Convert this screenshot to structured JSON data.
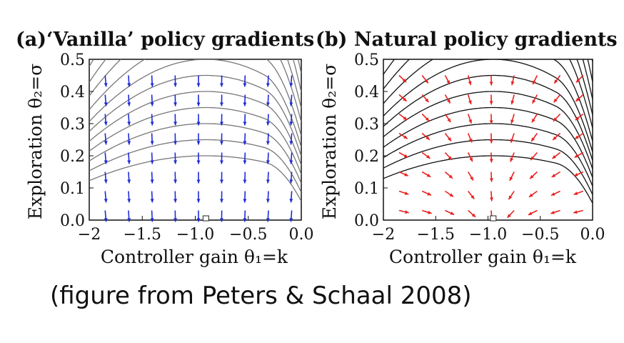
{
  "chart_data": [
    {
      "type": "quiver-contour",
      "title": "(a)‘Vanilla’ policy gradients",
      "xlabel": "Controller gain θ₁=k",
      "ylabel": "Exploration θ₂=σ",
      "xlim": [
        -2,
        0
      ],
      "ylim": [
        0,
        0.5
      ],
      "x_ticks": [
        -2,
        -1.5,
        -1,
        -0.5,
        0
      ],
      "x_tick_labels": [
        "−2",
        "−1.5",
        "−1.0",
        "−0.5",
        "0.0"
      ],
      "y_ticks": [
        0,
        0.1,
        0.2,
        0.3,
        0.4,
        0.5
      ],
      "y_tick_labels": [
        "0.0",
        "0.1",
        "0.2",
        "0.3",
        "0.4",
        "0.5"
      ],
      "arrow_color": "#1f2bd6",
      "contour_color": "#777777",
      "optimum": {
        "k": -0.9,
        "sigma": 0.0
      },
      "contour_levels": [
        0.2,
        0.25,
        0.3,
        0.35,
        0.4,
        0.45,
        0.5,
        0.56,
        0.63,
        0.7,
        0.78,
        0.87,
        0.97
      ],
      "arrow_columns_k": [
        -1.85,
        -1.63,
        -1.41,
        -1.19,
        -0.97,
        -0.75,
        -0.53,
        -0.31,
        -0.09
      ],
      "arrow_rows_sigma": [
        0.03,
        0.09,
        0.15,
        0.21,
        0.27,
        0.33,
        0.39,
        0.45
      ]
    },
    {
      "type": "quiver-contour",
      "title": "(b) Natural policy gradients",
      "xlabel": "Controller gain θ₁=k",
      "ylabel": "Exploration θ₂=σ",
      "xlim": [
        -2,
        0
      ],
      "ylim": [
        0,
        0.5
      ],
      "x_ticks": [
        -2,
        -1.5,
        -1,
        -0.5,
        0
      ],
      "x_tick_labels": [
        "−2",
        "−1.5",
        "−1.0",
        "−0.5",
        "0.0"
      ],
      "y_ticks": [
        0,
        0.1,
        0.2,
        0.3,
        0.4,
        0.5
      ],
      "y_tick_labels": [
        "0.0",
        "0.1",
        "0.2",
        "0.3",
        "0.4",
        "0.5"
      ],
      "arrow_color": "#e8201f",
      "contour_color": "#111111",
      "optimum": {
        "k": -0.95,
        "sigma": 0.0
      },
      "contour_levels": [
        0.2,
        0.25,
        0.3,
        0.35,
        0.4,
        0.45,
        0.5,
        0.56,
        0.63,
        0.7,
        0.78,
        0.87,
        0.97
      ],
      "arrow_columns_k": [
        -1.85,
        -1.63,
        -1.41,
        -1.19,
        -0.97,
        -0.75,
        -0.53,
        -0.31,
        -0.09
      ],
      "arrow_rows_sigma": [
        0.03,
        0.09,
        0.15,
        0.21,
        0.27,
        0.33,
        0.39,
        0.45
      ]
    }
  ],
  "caption": "(figure from Peters & Schaal 2008)"
}
